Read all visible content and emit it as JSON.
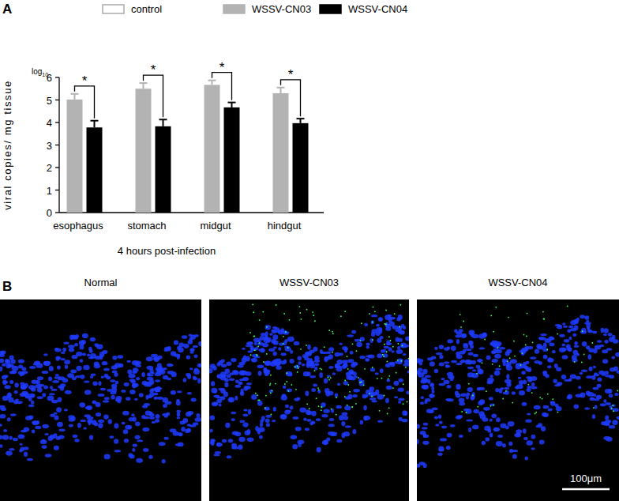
{
  "chart_data": {
    "type": "bar",
    "panel_label": "A",
    "x_label": "4 hours post-infection",
    "y_label": "viral copies/ mg tissue",
    "y_unit_text": "log",
    "y_unit_subscript": "10",
    "categories": [
      "esophagus",
      "stomach",
      "midgut",
      "hindgut"
    ],
    "series": [
      {
        "name": "control",
        "color": "#ffffff",
        "values": [
          null,
          null,
          null,
          null
        ],
        "errors": [
          null,
          null,
          null,
          null
        ]
      },
      {
        "name": "WSSV-CN03",
        "color": "#b3b3b3",
        "values": [
          5.02,
          5.5,
          5.67,
          5.3
        ],
        "errors": [
          0.25,
          0.25,
          0.2,
          0.25
        ]
      },
      {
        "name": "WSSV-CN04",
        "color": "#000000",
        "values": [
          3.78,
          3.83,
          4.67,
          3.97
        ],
        "errors": [
          0.3,
          0.3,
          0.22,
          0.2
        ]
      }
    ],
    "significance": [
      "*",
      "*",
      "*",
      "*"
    ],
    "ylim": [
      0,
      6
    ],
    "yticks": [
      0,
      1,
      2,
      3,
      4,
      5,
      6
    ],
    "grid": false,
    "legend": "top"
  },
  "panel_b": {
    "label": "B",
    "images": [
      {
        "title": "Normal"
      },
      {
        "title": "WSSV-CN03"
      },
      {
        "title": "WSSV-CN04"
      }
    ],
    "scale_bar": "100μm"
  }
}
